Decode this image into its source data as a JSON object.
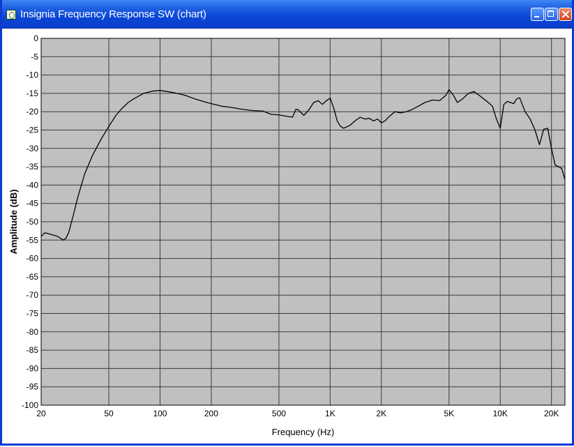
{
  "window": {
    "title": "Insignia Frequency Response SW (chart)",
    "titlebar_color": "#0a46d8",
    "buttons": [
      "minimize-icon",
      "maximize-icon",
      "close-icon"
    ]
  },
  "chart_data": {
    "type": "line",
    "title": "",
    "xlabel": "Frequency (Hz)",
    "ylabel": "Amplitude (dB)",
    "xscale": "log",
    "xlim": [
      20,
      24000
    ],
    "ylim": [
      -100,
      0
    ],
    "grid": true,
    "background": "#c0c0c0",
    "line_color": "#000000",
    "x_ticks": [
      20,
      50,
      100,
      200,
      500,
      1000,
      2000,
      5000,
      10000,
      20000
    ],
    "x_tick_labels": [
      "20",
      "50",
      "100",
      "200",
      "500",
      "1K",
      "2K",
      "5K",
      "10K",
      "20K"
    ],
    "y_ticks": [
      0,
      -5,
      -10,
      -15,
      -20,
      -25,
      -30,
      -35,
      -40,
      -45,
      -50,
      -55,
      -60,
      -65,
      -70,
      -75,
      -80,
      -85,
      -90,
      -95,
      -100
    ],
    "y_tick_labels": [
      "0",
      "-5",
      "-10",
      "-15",
      "-20",
      "-25",
      "-30",
      "-35",
      "-40",
      "-45",
      "-50",
      "-55",
      "-60",
      "-65",
      "-70",
      "-75",
      "-80",
      "-85",
      "-90",
      "-95",
      "-100"
    ],
    "series": [
      {
        "x": [
          20,
          21,
          23,
          25,
          27,
          28,
          29,
          31,
          33,
          36,
          40,
          45,
          50,
          55,
          60,
          65,
          70,
          80,
          90,
          100,
          110,
          120,
          140,
          160,
          180,
          200,
          230,
          260,
          300,
          350,
          400,
          450,
          500,
          550,
          600,
          630,
          650,
          700,
          750,
          800,
          850,
          900,
          950,
          1000,
          1050,
          1100,
          1150,
          1200,
          1300,
          1400,
          1500,
          1600,
          1700,
          1800,
          1900,
          2000,
          2100,
          2200,
          2400,
          2600,
          2800,
          3000,
          3300,
          3600,
          4000,
          4400,
          4800,
          5000,
          5300,
          5600,
          6000,
          6500,
          7000,
          7500,
          8000,
          8500,
          9000,
          9500,
          10000,
          10500,
          11000,
          11500,
          12000,
          12500,
          13000,
          14000,
          15000,
          16000,
          17000,
          18000,
          19000,
          20000,
          21000,
          22000,
          23000,
          24000
        ],
        "y": [
          -54,
          -53,
          -53.5,
          -54,
          -55,
          -54.5,
          -53,
          -48,
          -43,
          -37,
          -32,
          -27.5,
          -24,
          -21,
          -19,
          -17.5,
          -16.5,
          -15,
          -14.4,
          -14.2,
          -14.5,
          -14.8,
          -15.5,
          -16.5,
          -17.2,
          -17.8,
          -18.5,
          -18.8,
          -19.3,
          -19.7,
          -19.8,
          -20.7,
          -20.9,
          -21.2,
          -21.5,
          -19.3,
          -19.5,
          -21,
          -19.5,
          -17.5,
          -17,
          -18,
          -17,
          -16.3,
          -19,
          -22.5,
          -24,
          -24.5,
          -23.8,
          -22.5,
          -21.5,
          -22,
          -21.8,
          -22.5,
          -22,
          -23,
          -22.5,
          -21.5,
          -20,
          -20.3,
          -20,
          -19.5,
          -18.5,
          -17.5,
          -16.8,
          -17,
          -15.5,
          -14,
          -15.5,
          -17.5,
          -16.5,
          -15,
          -14.5,
          -15.5,
          -16.5,
          -17.5,
          -18.5,
          -22,
          -24.5,
          -18,
          -17.2,
          -17.5,
          -17.8,
          -16.5,
          -16.2,
          -20,
          -22,
          -25,
          -29,
          -24.8,
          -24.5,
          -30,
          -34.5,
          -35,
          -35.5,
          -38.5
        ]
      }
    ]
  }
}
